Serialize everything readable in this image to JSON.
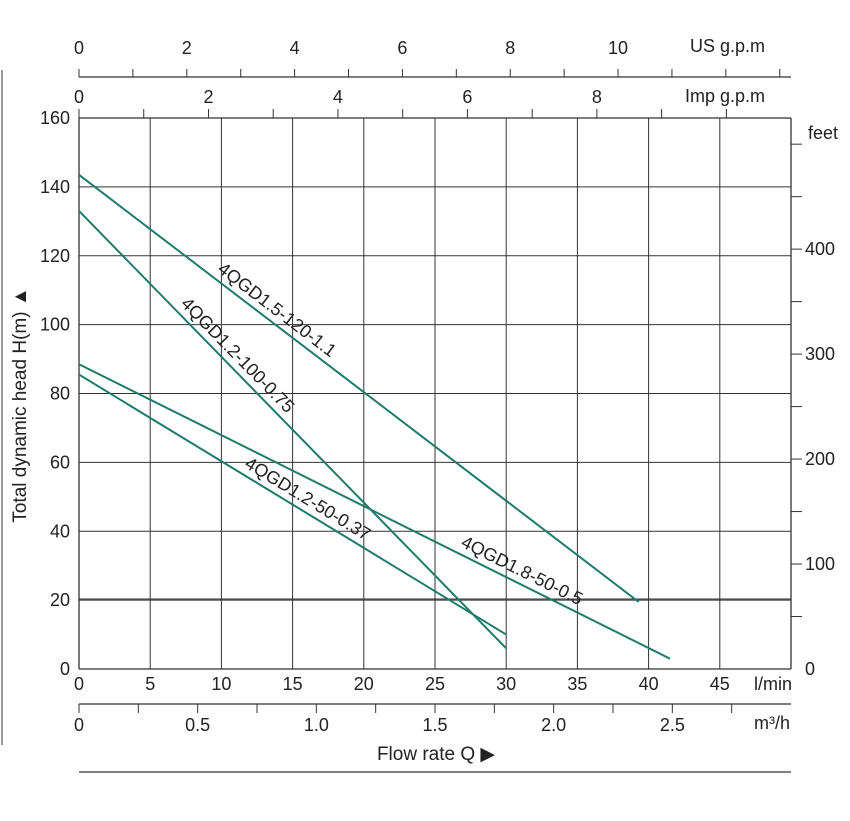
{
  "colors": {
    "curve": "#1f7a6e",
    "grid": "#333333",
    "text": "#222222"
  },
  "chart_data": {
    "type": "line",
    "x_primary": {
      "unit": "l/min",
      "ticks": [
        "0",
        "5",
        "10",
        "15",
        "20",
        "25",
        "30",
        "35",
        "40",
        "45"
      ],
      "range": [
        0,
        50
      ]
    },
    "x_m3h": {
      "unit": "m³/h",
      "ticks": [
        "0",
        "0.5",
        "1.0",
        "1.5",
        "2.0",
        "2.5"
      ]
    },
    "x_us": {
      "unit": "US g.p.m",
      "ticks": [
        "0",
        "2",
        "4",
        "6",
        "8",
        "10"
      ]
    },
    "x_imp": {
      "unit": "Imp g.p.m",
      "ticks": [
        "0",
        "2",
        "4",
        "6",
        "8"
      ]
    },
    "y_left": {
      "title": "Total dynamic head H(m) ▲",
      "ticks": [
        "0",
        "20",
        "40",
        "60",
        "80",
        "100",
        "120",
        "140",
        "160"
      ],
      "range": [
        0,
        160
      ]
    },
    "y_right": {
      "unit": "feet",
      "ticks": [
        "0",
        "100",
        "200",
        "300",
        "400"
      ]
    },
    "xlabel": "Flow  rate Q ▶",
    "grid": true,
    "series": [
      {
        "name": "4QGD1.5-120-1.1",
        "x": [
          0,
          39.3
        ],
        "y": [
          143.5,
          19.5
        ]
      },
      {
        "name": "4QGD1.2-100-0.75",
        "x": [
          0,
          30
        ],
        "y": [
          133,
          6
        ]
      },
      {
        "name": "4QGD1.8-50-0.5",
        "x": [
          0,
          41.5
        ],
        "y": [
          88.5,
          3
        ]
      },
      {
        "name": "4QGD1.2-50-0.37",
        "x": [
          0,
          30
        ],
        "y": [
          85.5,
          10
        ]
      }
    ]
  }
}
